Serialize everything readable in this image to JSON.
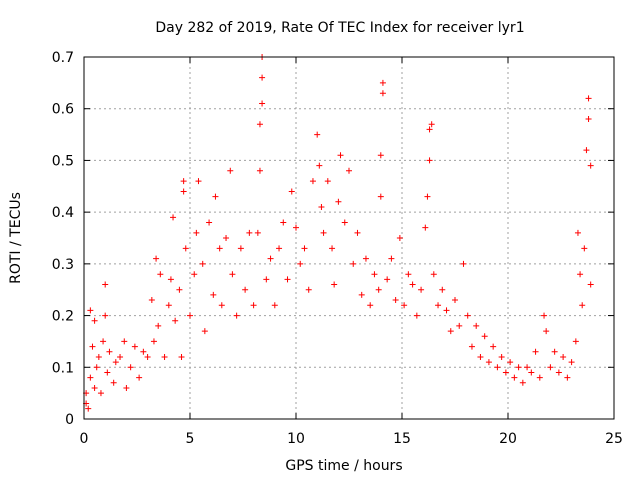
{
  "chart_data": {
    "type": "scatter",
    "title": "Day 282 of 2019, Rate Of TEC Index for receiver lyr1",
    "xlabel": "GPS time / hours",
    "ylabel": "ROTI / TECUs",
    "xlim": [
      0,
      25
    ],
    "ylim": [
      0,
      0.7
    ],
    "xticks": [
      0,
      5,
      10,
      15,
      20,
      25
    ],
    "xtick_labels": [
      "0",
      "5",
      "10",
      "15",
      "20",
      "25"
    ],
    "yticks": [
      0,
      0.1,
      0.2,
      0.3,
      0.4,
      0.5,
      0.6,
      0.7
    ],
    "ytick_labels": [
      "0",
      "0.1",
      "0.2",
      "0.3",
      "0.4",
      "0.5",
      "0.6",
      "0.7"
    ],
    "grid": true,
    "marker": "+",
    "color": "#ff0000",
    "series": [
      {
        "name": "ROTI",
        "points": [
          [
            0.1,
            0.03
          ],
          [
            0.1,
            0.05
          ],
          [
            0.2,
            0.02
          ],
          [
            0.3,
            0.08
          ],
          [
            0.3,
            0.21
          ],
          [
            0.4,
            0.14
          ],
          [
            0.5,
            0.19
          ],
          [
            0.5,
            0.06
          ],
          [
            0.6,
            0.1
          ],
          [
            0.7,
            0.12
          ],
          [
            0.8,
            0.05
          ],
          [
            0.9,
            0.15
          ],
          [
            1.0,
            0.2
          ],
          [
            1.0,
            0.26
          ],
          [
            1.1,
            0.09
          ],
          [
            1.2,
            0.13
          ],
          [
            1.4,
            0.07
          ],
          [
            1.5,
            0.11
          ],
          [
            1.7,
            0.12
          ],
          [
            1.9,
            0.15
          ],
          [
            2.0,
            0.06
          ],
          [
            2.2,
            0.1
          ],
          [
            2.4,
            0.14
          ],
          [
            2.6,
            0.08
          ],
          [
            2.8,
            0.13
          ],
          [
            3.0,
            0.12
          ],
          [
            3.2,
            0.23
          ],
          [
            3.3,
            0.15
          ],
          [
            3.4,
            0.31
          ],
          [
            3.5,
            0.18
          ],
          [
            3.6,
            0.28
          ],
          [
            3.8,
            0.12
          ],
          [
            4.0,
            0.22
          ],
          [
            4.1,
            0.27
          ],
          [
            4.2,
            0.39
          ],
          [
            4.3,
            0.19
          ],
          [
            4.5,
            0.25
          ],
          [
            4.6,
            0.12
          ],
          [
            4.7,
            0.44
          ],
          [
            4.7,
            0.46
          ],
          [
            4.8,
            0.33
          ],
          [
            5.0,
            0.2
          ],
          [
            5.2,
            0.28
          ],
          [
            5.3,
            0.36
          ],
          [
            5.4,
            0.46
          ],
          [
            5.6,
            0.3
          ],
          [
            5.7,
            0.17
          ],
          [
            5.9,
            0.38
          ],
          [
            6.1,
            0.24
          ],
          [
            6.2,
            0.43
          ],
          [
            6.4,
            0.33
          ],
          [
            6.5,
            0.22
          ],
          [
            6.7,
            0.35
          ],
          [
            6.9,
            0.48
          ],
          [
            7.0,
            0.28
          ],
          [
            7.2,
            0.2
          ],
          [
            7.4,
            0.33
          ],
          [
            7.6,
            0.25
          ],
          [
            7.8,
            0.36
          ],
          [
            8.0,
            0.22
          ],
          [
            8.2,
            0.36
          ],
          [
            8.3,
            0.48
          ],
          [
            8.3,
            0.57
          ],
          [
            8.4,
            0.61
          ],
          [
            8.4,
            0.66
          ],
          [
            8.4,
            0.7
          ],
          [
            8.6,
            0.27
          ],
          [
            8.8,
            0.31
          ],
          [
            9.0,
            0.22
          ],
          [
            9.2,
            0.33
          ],
          [
            9.4,
            0.38
          ],
          [
            9.6,
            0.27
          ],
          [
            9.8,
            0.44
          ],
          [
            10.0,
            0.37
          ],
          [
            10.2,
            0.3
          ],
          [
            10.4,
            0.33
          ],
          [
            10.6,
            0.25
          ],
          [
            10.8,
            0.46
          ],
          [
            11.0,
            0.55
          ],
          [
            11.1,
            0.49
          ],
          [
            11.2,
            0.41
          ],
          [
            11.3,
            0.36
          ],
          [
            11.5,
            0.46
          ],
          [
            11.7,
            0.33
          ],
          [
            11.8,
            0.26
          ],
          [
            12.0,
            0.42
          ],
          [
            12.1,
            0.51
          ],
          [
            12.3,
            0.38
          ],
          [
            12.5,
            0.48
          ],
          [
            12.7,
            0.3
          ],
          [
            12.9,
            0.36
          ],
          [
            13.1,
            0.24
          ],
          [
            13.3,
            0.31
          ],
          [
            13.5,
            0.22
          ],
          [
            13.7,
            0.28
          ],
          [
            13.9,
            0.25
          ],
          [
            14.0,
            0.43
          ],
          [
            14.0,
            0.51
          ],
          [
            14.1,
            0.63
          ],
          [
            14.1,
            0.65
          ],
          [
            14.3,
            0.27
          ],
          [
            14.5,
            0.31
          ],
          [
            14.7,
            0.23
          ],
          [
            14.9,
            0.35
          ],
          [
            15.1,
            0.22
          ],
          [
            15.3,
            0.28
          ],
          [
            15.5,
            0.26
          ],
          [
            15.7,
            0.2
          ],
          [
            15.9,
            0.25
          ],
          [
            16.1,
            0.37
          ],
          [
            16.2,
            0.43
          ],
          [
            16.3,
            0.5
          ],
          [
            16.3,
            0.56
          ],
          [
            16.4,
            0.57
          ],
          [
            16.5,
            0.28
          ],
          [
            16.7,
            0.22
          ],
          [
            16.9,
            0.25
          ],
          [
            17.1,
            0.21
          ],
          [
            17.3,
            0.17
          ],
          [
            17.5,
            0.23
          ],
          [
            17.7,
            0.18
          ],
          [
            17.9,
            0.3
          ],
          [
            18.1,
            0.2
          ],
          [
            18.3,
            0.14
          ],
          [
            18.5,
            0.18
          ],
          [
            18.7,
            0.12
          ],
          [
            18.9,
            0.16
          ],
          [
            19.1,
            0.11
          ],
          [
            19.3,
            0.14
          ],
          [
            19.5,
            0.1
          ],
          [
            19.7,
            0.12
          ],
          [
            19.9,
            0.09
          ],
          [
            20.1,
            0.11
          ],
          [
            20.3,
            0.08
          ],
          [
            20.5,
            0.1
          ],
          [
            20.7,
            0.07
          ],
          [
            20.9,
            0.1
          ],
          [
            21.1,
            0.09
          ],
          [
            21.3,
            0.13
          ],
          [
            21.5,
            0.08
          ],
          [
            21.7,
            0.2
          ],
          [
            21.8,
            0.17
          ],
          [
            22.0,
            0.1
          ],
          [
            22.2,
            0.13
          ],
          [
            22.4,
            0.09
          ],
          [
            22.6,
            0.12
          ],
          [
            22.8,
            0.08
          ],
          [
            23.0,
            0.11
          ],
          [
            23.2,
            0.15
          ],
          [
            23.3,
            0.36
          ],
          [
            23.4,
            0.28
          ],
          [
            23.5,
            0.22
          ],
          [
            23.6,
            0.33
          ],
          [
            23.7,
            0.52
          ],
          [
            23.8,
            0.58
          ],
          [
            23.8,
            0.62
          ],
          [
            23.9,
            0.49
          ],
          [
            23.9,
            0.26
          ]
        ]
      }
    ]
  }
}
